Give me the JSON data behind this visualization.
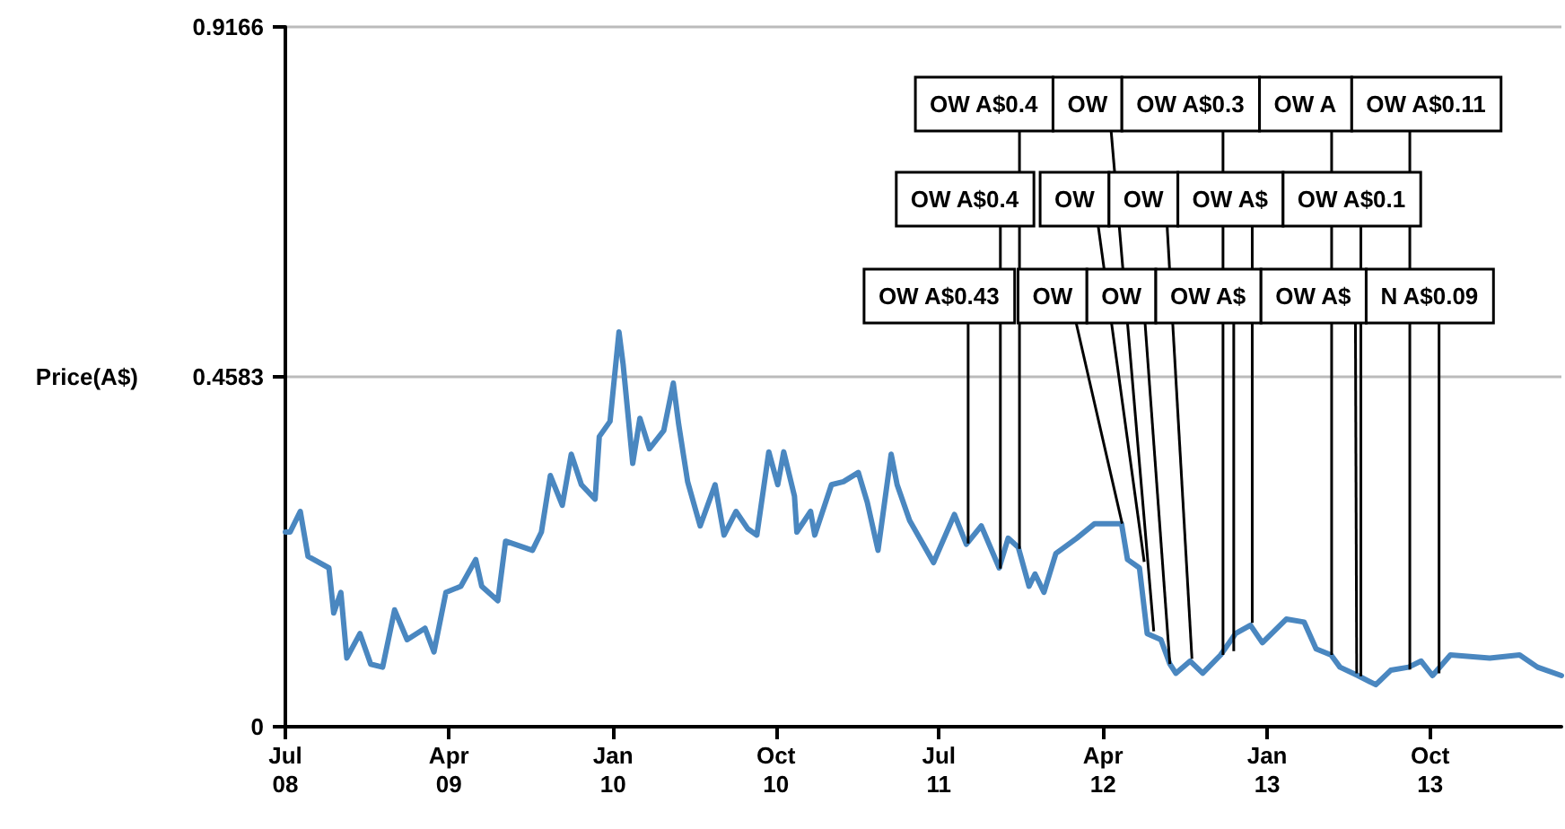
{
  "chart_data": {
    "type": "line",
    "ylabel": "Price(A$)",
    "x": [
      "2008-07-01",
      "2008-07-09",
      "2008-07-26",
      "2008-08-08",
      "2008-09-12",
      "2008-09-20",
      "2008-10-02",
      "2008-10-12",
      "2008-11-03",
      "2008-11-21",
      "2008-12-11",
      "2008-12-31",
      "2009-01-21",
      "2009-02-20",
      "2009-03-07",
      "2009-03-27",
      "2009-04-21",
      "2009-05-16",
      "2009-05-26",
      "2009-06-22",
      "2009-07-05",
      "2009-08-19",
      "2009-09-03",
      "2009-09-18",
      "2009-10-08",
      "2009-10-23",
      "2009-11-09",
      "2009-12-02",
      "2009-12-09",
      "2009-12-27",
      "2010-01-11",
      "2010-01-18",
      "2010-02-03",
      "2010-02-15",
      "2010-03-03",
      "2010-03-27",
      "2010-04-12",
      "2010-04-21",
      "2010-05-06",
      "2010-05-27",
      "2010-06-21",
      "2010-07-06",
      "2010-07-26",
      "2010-08-15",
      "2010-08-30",
      "2010-09-19",
      "2010-10-04",
      "2010-10-14",
      "2010-11-01",
      "2010-11-05",
      "2010-11-28",
      "2010-12-05",
      "2011-01-02",
      "2011-01-22",
      "2011-02-16",
      "2011-03-03",
      "2011-03-21",
      "2011-04-12",
      "2011-04-22",
      "2011-05-13",
      "2011-06-22",
      "2011-07-27",
      "2011-08-16",
      "2011-09-10",
      "2011-10-10",
      "2011-10-25",
      "2011-11-11",
      "2011-11-29",
      "2011-12-09",
      "2011-12-24",
      "2012-01-13",
      "2012-02-17",
      "2012-03-18",
      "2012-05-02",
      "2012-05-12",
      "2012-06-01",
      "2012-06-14",
      "2012-07-07",
      "2012-07-22",
      "2012-08-01",
      "2012-08-25",
      "2012-09-15",
      "2012-10-15",
      "2012-11-09",
      "2012-12-04",
      "2012-12-24",
      "2013-02-02",
      "2013-03-04",
      "2013-03-24",
      "2013-04-18",
      "2013-05-03",
      "2013-06-02",
      "2013-07-02",
      "2013-07-27",
      "2013-08-26",
      "2013-09-16",
      "2013-10-05",
      "2013-11-04",
      "2014-01-09",
      "2014-02-28",
      "2014-03-30",
      "2014-05-09"
    ],
    "series": [
      {
        "color": "#4a87c0",
        "values": [
          0.255,
          0.255,
          0.282,
          0.223,
          0.208,
          0.149,
          0.176,
          0.09,
          0.122,
          0.082,
          0.078,
          0.153,
          0.114,
          0.129,
          0.098,
          0.176,
          0.184,
          0.219,
          0.184,
          0.165,
          0.243,
          0.231,
          0.255,
          0.329,
          0.29,
          0.357,
          0.317,
          0.298,
          0.38,
          0.4,
          0.517,
          0.474,
          0.345,
          0.404,
          0.364,
          0.388,
          0.45,
          0.396,
          0.321,
          0.263,
          0.317,
          0.251,
          0.282,
          0.259,
          0.251,
          0.36,
          0.317,
          0.36,
          0.302,
          0.255,
          0.282,
          0.251,
          0.317,
          0.321,
          0.333,
          0.294,
          0.231,
          0.357,
          0.317,
          0.27,
          0.215,
          0.278,
          0.239,
          0.263,
          0.208,
          0.247,
          0.235,
          0.184,
          0.2,
          0.176,
          0.227,
          0.247,
          0.266,
          0.266,
          0.219,
          0.208,
          0.122,
          0.114,
          0.082,
          0.07,
          0.086,
          0.07,
          0.094,
          0.122,
          0.133,
          0.11,
          0.141,
          0.137,
          0.102,
          0.094,
          0.078,
          0.067,
          0.055,
          0.074,
          0.078,
          0.086,
          0.067,
          0.094,
          0.09,
          0.094,
          0.078,
          0.067
        ]
      }
    ],
    "xlim": [
      "2008-07-01",
      "2014-05-09"
    ],
    "xticks": [
      {
        "value": "2008-07-01",
        "label": "Jul\n08"
      },
      {
        "value": "2009-04-01",
        "label": "Apr\n09"
      },
      {
        "value": "2010-01-01",
        "label": "Jan\n10"
      },
      {
        "value": "2010-10-01",
        "label": "Oct\n10"
      },
      {
        "value": "2011-07-01",
        "label": "Jul\n11"
      },
      {
        "value": "2012-04-01",
        "label": "Apr\n12"
      },
      {
        "value": "2013-01-01",
        "label": "Jan\n13"
      },
      {
        "value": "2013-10-01",
        "label": "Oct\n13"
      }
    ],
    "ylim": [
      0,
      0.9166
    ],
    "yticks": [
      0,
      0.4583,
      0.9166
    ],
    "grid": "y",
    "marker": "none",
    "line_style": "solid",
    "annotations": [
      {
        "text": "OW A$0.43",
        "x": "2011-08-19",
        "y": 0.24
      },
      {
        "text": "OW A$0.4",
        "x": "2011-10-12",
        "y": 0.207
      },
      {
        "text": "OW A$0.4",
        "x": "2011-11-13",
        "y": 0.233
      },
      {
        "text": "OW",
        "x": "2012-05-03",
        "y": 0.266
      },
      {
        "text": "OW",
        "x": "2012-06-09",
        "y": 0.216
      },
      {
        "text": "OW",
        "x": "2012-06-25",
        "y": 0.125
      },
      {
        "text": "OW",
        "x": "2012-07-22",
        "y": 0.082
      },
      {
        "text": "OW",
        "x": "2012-08-28",
        "y": 0.089
      },
      {
        "text": "OW A$0.3",
        "x": "2012-10-19",
        "y": 0.094
      },
      {
        "text": "OW A$",
        "x": "2012-11-06",
        "y": 0.099
      },
      {
        "text": "OW A$",
        "x": "2012-12-07",
        "y": 0.136
      },
      {
        "text": "OW A",
        "x": "2013-04-19",
        "y": 0.094
      },
      {
        "text": "OW A$",
        "x": "2013-05-31",
        "y": 0.07
      },
      {
        "text": "OW A$0.1",
        "x": "2013-06-07",
        "y": 0.066
      },
      {
        "text": "OW A$0.11",
        "x": "2013-08-28",
        "y": 0.075
      },
      {
        "text": "N A$0.09",
        "x": "2013-10-16",
        "y": 0.07
      }
    ]
  }
}
